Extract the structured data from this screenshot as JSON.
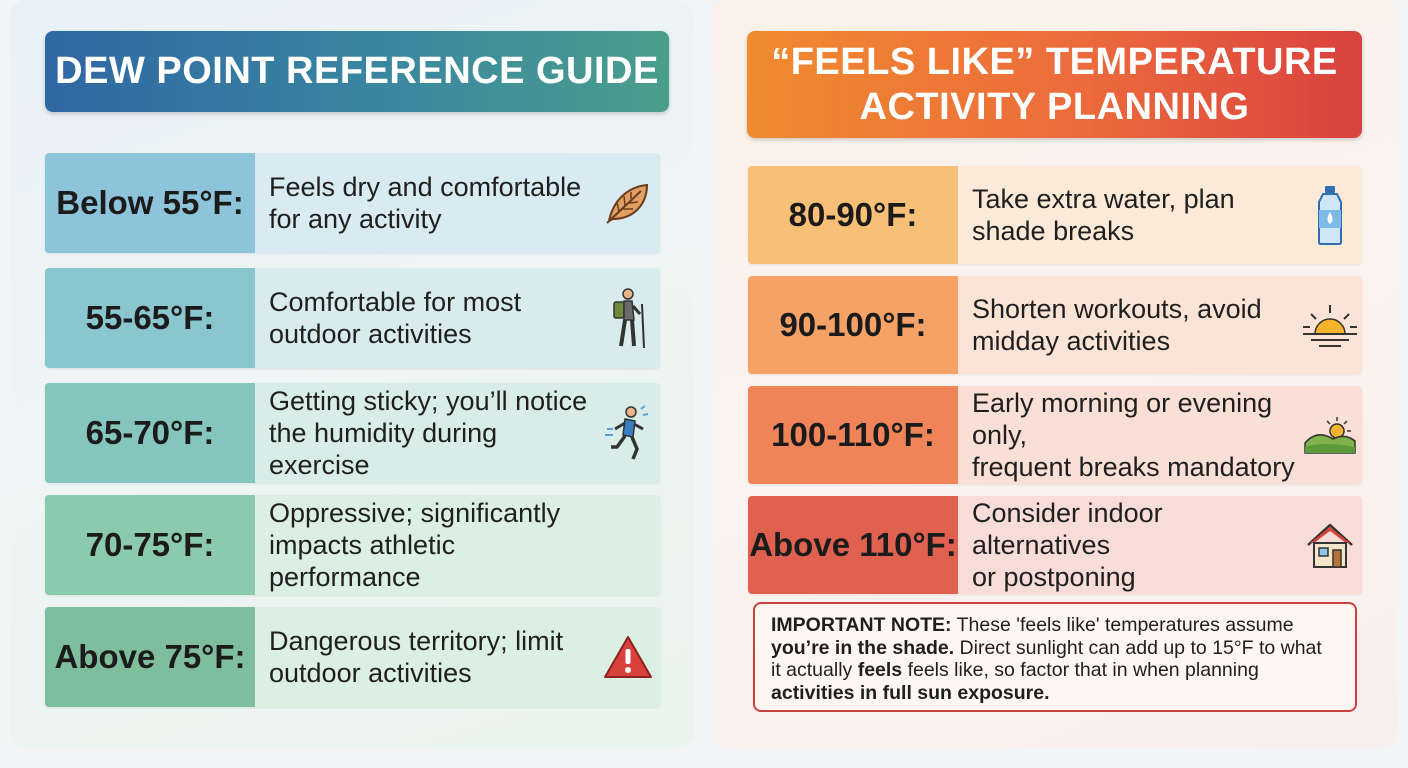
{
  "left": {
    "title": "DEW POINT REFERENCE GUIDE",
    "rows": [
      {
        "label": "Below 55°F:",
        "line1": "Feels dry and comfortable",
        "line2": "for any activity",
        "icon": "leaf-icon",
        "label_bg": "#8dc4da",
        "desc_bg": "#d9ebf2"
      },
      {
        "label": "55-65°F:",
        "line1": "Comfortable for most",
        "line2": "outdoor activities",
        "icon": "hiker-icon",
        "label_bg": "#89c6ce",
        "desc_bg": "#d8ecee"
      },
      {
        "label": "65-70°F:",
        "line1": "Getting sticky; you’ll notice",
        "line2": "the humidity during exercise",
        "icon": "runner-icon",
        "label_bg": "#84c5bd",
        "desc_bg": "#d8ede8"
      },
      {
        "label": "70-75°F:",
        "line1": "Oppressive; significantly",
        "line2": "impacts athletic performance",
        "icon": "",
        "label_bg": "#8ccaae",
        "desc_bg": "#dcefe4"
      },
      {
        "label": "Above 75°F:",
        "line1": "Dangerous territory; limit",
        "line2": "outdoor activities",
        "icon": "warning-icon",
        "label_bg": "#7fbe9c",
        "desc_bg": "#dcefe3"
      }
    ]
  },
  "right": {
    "title_line1": "“FEELS LIKE” TEMPERATURE",
    "title_line2": "ACTIVITY PLANNING",
    "rows": [
      {
        "label": "80-90°F:",
        "line1": "Take extra water, plan",
        "line2": "shade breaks",
        "icon": "water-bottle-icon",
        "label_bg": "#f8bf76",
        "desc_bg": "#fce9d7"
      },
      {
        "label": "90-100°F:",
        "line1": "Shorten workouts, avoid",
        "line2": "midday activities",
        "icon": "sunset-icon",
        "label_bg": "#f5a266",
        "desc_bg": "#fbe4d6"
      },
      {
        "label": "100-110°F:",
        "line1": "Early morning or evening only,",
        "line2": "frequent breaks mandatory",
        "icon": "sunrise-hill-icon",
        "label_bg": "#ee8458",
        "desc_bg": "#fadfd6"
      },
      {
        "label": "Above 110°F:",
        "line1": "Consider indoor alternatives",
        "line2": "or postponing",
        "icon": "house-icon",
        "label_bg": "#e0614f",
        "desc_bg": "#f8dcd7"
      }
    ],
    "note": {
      "p1_bold": "IMPORTANT NOTE:",
      "p1": " These 'feels like' temperatures assume",
      "p2_bold": "you’re in the shade.",
      "p2": " Direct sunlight can add up to 15°F to what",
      "p3": "it actually ",
      "p3_bold": "feels",
      "p3b": " feels like, so factor that in when planning",
      "p4_bold": "activities in full sun exposure."
    }
  }
}
